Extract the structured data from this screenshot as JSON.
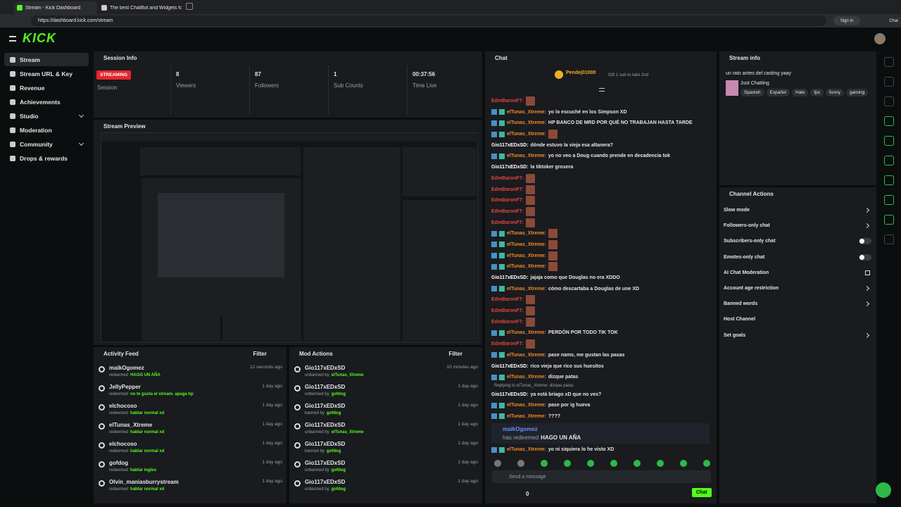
{
  "browser": {
    "tabs": [
      "Stream - Kick Dashboard",
      "The best ChatBot and Widgets for"
    ],
    "url": "https://dashboard.kick.com/stream",
    "sign_in": "Sign in",
    "chat": "Chat"
  },
  "header": {
    "logo": "KICK"
  },
  "sidebar": {
    "items": [
      {
        "label": "Stream",
        "active": true
      },
      {
        "label": "Stream URL & Key"
      },
      {
        "label": "Revenue"
      },
      {
        "label": "Achievements"
      },
      {
        "label": "Studio",
        "expand": true
      },
      {
        "label": "Moderation"
      },
      {
        "label": "Community",
        "expand": true
      },
      {
        "label": "Drops & rewards"
      }
    ]
  },
  "session": {
    "title": "Session Info",
    "status": "STREAMING",
    "status_label": "Session",
    "stats": [
      {
        "value": "8",
        "label": "Viewers"
      },
      {
        "value": "87",
        "label": "Followers"
      },
      {
        "value": "1",
        "label": "Sub Counts"
      },
      {
        "value": "00:37:56",
        "label": "Time Live"
      }
    ]
  },
  "preview": {
    "title": "Stream Preview"
  },
  "activity": {
    "title": "Activity Feed",
    "filter": "Filter",
    "items": [
      {
        "user": "maikOgomez",
        "action": "redeemed",
        "detail": "HAGO UN AÑA",
        "time": "12 seconds ago"
      },
      {
        "user": "JellyPepper",
        "action": "redeemed",
        "detail": "no te gusta el stream. apaga hp",
        "time": "1 day ago"
      },
      {
        "user": "elchocoso",
        "action": "redeemed",
        "detail": "hablar normal xd",
        "time": "1 day ago"
      },
      {
        "user": "elTunas_Xtreme",
        "action": "redeemed",
        "detail": "hablar normal xd",
        "time": "1 day ago"
      },
      {
        "user": "elchocoso",
        "action": "redeemed",
        "detail": "hablar normal xd",
        "time": "1 day ago"
      },
      {
        "user": "gofdog",
        "action": "redeemed",
        "detail": "hablar ingles",
        "time": "1 day ago"
      },
      {
        "user": "Olvin_maniasburrystream",
        "action": "redeemed",
        "detail": "hablar normal xd",
        "time": "1 day ago"
      }
    ]
  },
  "mod_actions": {
    "title": "Mod Actions",
    "filter": "Filter",
    "items": [
      {
        "user": "Gio117xEDxSD",
        "action": "unbanned by",
        "by": "elTunas_Xtreme",
        "time": "10 minutes ago"
      },
      {
        "user": "Gio117xEDxSD",
        "action": "unbanned by",
        "by": "gofdog",
        "time": "1 day ago"
      },
      {
        "user": "Gio117xEDxSD",
        "action": "banned by",
        "by": "gofdog",
        "time": "1 day ago"
      },
      {
        "user": "Gio117xEDxSD",
        "action": "unbanned by",
        "by": "elTunas_Xtreme",
        "time": "1 day ago"
      },
      {
        "user": "Gio117xEDxSD",
        "action": "banned by",
        "by": "gofdog",
        "time": "1 day ago"
      },
      {
        "user": "Gio117xEDxSD",
        "action": "unbanned by",
        "by": "gofdog",
        "time": "1 day ago"
      },
      {
        "user": "Gio117xEDxSD",
        "action": "unbanned by",
        "by": "gofdog",
        "time": "1 day ago"
      }
    ]
  },
  "chat": {
    "title": "Chat",
    "pinned": {
      "user": "Pendej01000",
      "text": "Gift 1 sub to take 2nd"
    },
    "messages": [
      {
        "user": "EdmBaronF7:",
        "color": "#e0453c",
        "emote": 1
      },
      {
        "user": "elTunas_Xtreme:",
        "color": "#f08a24",
        "badges": true,
        "text": "yo lo escuché en los Simpson XD"
      },
      {
        "user": "elTunas_Xtreme:",
        "color": "#f08a24",
        "badges": true,
        "text": "HP BANCO DE MRD POR QUÉ NO TRABAJAN HASTA TARDE"
      },
      {
        "user": "elTunas_Xtreme:",
        "color": "#f08a24",
        "badges": true,
        "emote": 1
      },
      {
        "user": "Gio117xEDxSD:",
        "color": "#ffffff",
        "text": "dónde estuvo la vieja esa altanera?"
      },
      {
        "user": "elTunas_Xtreme:",
        "color": "#f08a24",
        "badges": true,
        "text": "yo no veo a Doug cuando prende en decadencia tok"
      },
      {
        "user": "Gio117xEDxSD:",
        "color": "#ffffff",
        "text": "la tiktoker grosera"
      },
      {
        "user": "EdmBaronF7:",
        "color": "#e0453c",
        "emote": 1
      },
      {
        "user": "EdmBaronF7:",
        "color": "#e0453c",
        "emote": 1
      },
      {
        "user": "EdmBaronF7:",
        "color": "#e0453c",
        "emote": 1
      },
      {
        "user": "EdmBaronF7:",
        "color": "#e0453c",
        "emote": 1
      },
      {
        "user": "EdmBaronF7:",
        "color": "#e0453c",
        "emote": 1
      },
      {
        "user": "elTunas_Xtreme:",
        "color": "#f08a24",
        "badges": true,
        "emote": 1
      },
      {
        "user": "elTunas_Xtreme:",
        "color": "#f08a24",
        "badges": true,
        "emote": 1
      },
      {
        "user": "elTunas_Xtreme:",
        "color": "#f08a24",
        "badges": true,
        "emote": 1
      },
      {
        "user": "elTunas_Xtreme:",
        "color": "#f08a24",
        "badges": true,
        "emote": 1
      },
      {
        "user": "Gio117xEDxSD:",
        "color": "#ffffff",
        "text": "jajaja como que Douglas no era XDDO"
      },
      {
        "user": "elTunas_Xtreme:",
        "color": "#f08a24",
        "badges": true,
        "text": "cómo descartaba a Douglas de une XD"
      },
      {
        "user": "EdmBaronF7:",
        "color": "#e0453c",
        "emote": 1
      },
      {
        "user": "EdmBaronF7:",
        "color": "#e0453c",
        "emote": 1
      },
      {
        "user": "EdmBaronF7:",
        "color": "#e0453c",
        "emote": 1
      },
      {
        "user": "elTunas_Xtreme:",
        "color": "#f08a24",
        "badges": true,
        "text": "PERDÓN POR TODO TIK TOK"
      },
      {
        "user": "EdmBaronF7:",
        "color": "#e0453c",
        "emote": 1
      },
      {
        "user": "elTunas_Xtreme:",
        "color": "#f08a24",
        "badges": true,
        "text": "pase nams, me gustan las pasas"
      },
      {
        "user": "Gio117xEDxSD:",
        "color": "#ffffff",
        "text": "rico vieja que rico sus huesitos"
      },
      {
        "user": "elTunas_Xtreme:",
        "color": "#f08a24",
        "badges": true,
        "text": "dizque patas"
      },
      {
        "reply": "Replying to elTunas_Xtreme: dizque patas",
        "user": "Gio117xEDxSD:",
        "color": "#ffffff",
        "text": "ya está briago xD que no ves?"
      },
      {
        "user": "elTunas_Xtreme:",
        "color": "#f08a24",
        "badges": true,
        "text": "pase por ig hueva"
      },
      {
        "user": "elTunas_Xtreme:",
        "color": "#f08a24",
        "badges": true,
        "text": "????"
      },
      {
        "kind": "redeem",
        "user": "maikOgomez",
        "color": "#6b8cff",
        "text": "has redeemed",
        "highlight": "HAGO UN AÑA"
      },
      {
        "user": "elTunas_Xtreme:",
        "color": "#f08a24",
        "badges": true,
        "text": "yo ni siquiera lo he visto XD"
      }
    ],
    "input": "Send a message",
    "points": "0",
    "send": "Chat"
  },
  "stream_info": {
    "title": "Stream info",
    "description": "un rato antes del casting yaay",
    "category": "Just Chatting",
    "tags": [
      "Spanish",
      "Español",
      "Halo",
      "fps",
      "funny",
      "gaming"
    ]
  },
  "channel_actions": {
    "title": "Channel Actions",
    "items": [
      {
        "label": "Slow mode",
        "control": "chevron"
      },
      {
        "label": "Followers-only chat",
        "control": "chevron"
      },
      {
        "label": "Subscribers-only chat",
        "control": "toggle"
      },
      {
        "label": "Emotes-only chat",
        "control": "toggle"
      },
      {
        "label": "AI Chat Moderation",
        "control": "external"
      },
      {
        "label": "Account age restriction",
        "control": "chevron"
      },
      {
        "label": "Banned words",
        "control": "chevron"
      },
      {
        "label": "Host Channel"
      },
      {
        "label": "Set goals",
        "control": "chevron"
      }
    ]
  }
}
